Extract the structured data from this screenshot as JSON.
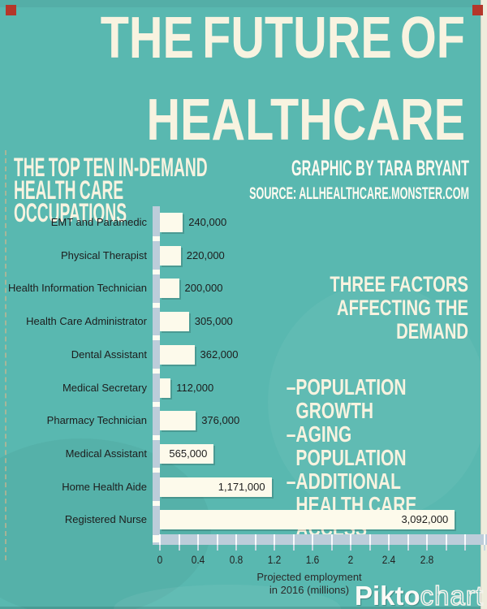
{
  "page": {
    "background_color": "#59b8b0",
    "cream_color": "#f8f3e0",
    "axis_color": "#bccdda",
    "pin_color": "#b4372a"
  },
  "header": {
    "title_line1": "THE FUTURE OF",
    "title_line2": "HEALTHCARE"
  },
  "intro": {
    "left_heading_line1": "THE TOP TEN IN-DEMAND",
    "left_heading_line2": "HEALTH CARE OCCUPATIONS",
    "credit": "GRAPHIC BY TARA BRYANT",
    "source": "SOURCE: ALLHEALTHCARE.MONSTER.COM"
  },
  "factors": {
    "heading_line1": "THREE FACTORS",
    "heading_line2": "AFFECTING THE DEMAND",
    "bullet": "–",
    "items": [
      "POPULATION GROWTH",
      "AGING POPULATION",
      "ADDITIONAL HEALTH CARE ACCESS"
    ]
  },
  "chart_data": {
    "type": "bar",
    "orientation": "horizontal",
    "title": "THE TOP TEN IN-DEMAND HEALTH CARE OCCUPATIONS",
    "categories": [
      "EMT and Paramedic",
      "Physical Therapist",
      "Health Information Technician",
      "Health Care Administrator",
      "Dental Assistant",
      "Medical Secretary",
      "Pharmacy Technician",
      "Medical Assistant",
      "Home Health Aide",
      "Registered Nurse"
    ],
    "values": [
      240000,
      220000,
      200000,
      305000,
      362000,
      112000,
      376000,
      565000,
      1171000,
      3092000
    ],
    "value_labels": [
      "240,000",
      "220,000",
      "200,000",
      "305,000",
      "362,000",
      "112,000",
      "376,000",
      "565,000",
      "1,171,000",
      "3,092,000"
    ],
    "xlabel_line1": "Projected employment",
    "xlabel_line2": "in 2016 (millions)",
    "x_tick_labels": [
      "0",
      "0.4",
      "0.8",
      "1.2",
      "1.6",
      "2",
      "2.4",
      "2.8"
    ],
    "x_tick_values_millions": [
      0,
      0.4,
      0.8,
      1.2,
      1.6,
      2.0,
      2.4,
      2.8
    ],
    "xlim_millions": [
      0,
      3.45
    ],
    "minor_tick_step_millions": 0.2,
    "bar_color": "#fdfaeb",
    "grid": false,
    "legend": false
  },
  "footer": {
    "logo_bold": "Pikto",
    "logo_light": "chart"
  }
}
